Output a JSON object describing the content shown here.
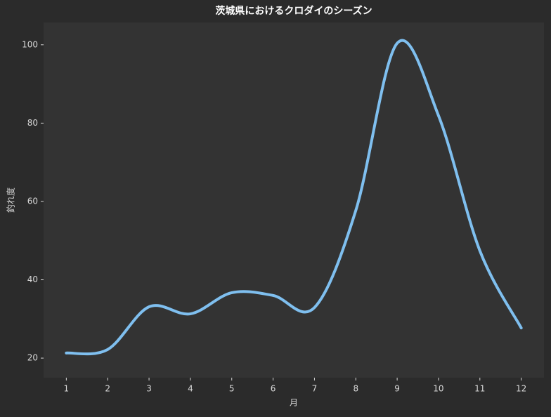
{
  "chart_data": {
    "type": "line",
    "title": "茨城県におけるクロダイのシーズン",
    "xlabel": "月",
    "ylabel": "釣れ度",
    "x": [
      1,
      2,
      3,
      4,
      5,
      6,
      7,
      8,
      9,
      10,
      11,
      12
    ],
    "series": [
      {
        "color": "#7fbfef",
        "values": [
          21.3,
          22.2,
          33.1,
          31.3,
          36.7,
          36,
          32.9,
          57.7,
          100.4,
          81.9,
          47.4,
          27.7
        ]
      }
    ],
    "xlim": [
      0.45,
      12.55
    ],
    "ylim": [
      15,
      105.7
    ],
    "xticks": [
      1,
      2,
      3,
      4,
      5,
      6,
      7,
      8,
      9,
      10,
      11,
      12
    ],
    "yticks": [
      20,
      40,
      60,
      80,
      100
    ],
    "grid": false
  }
}
